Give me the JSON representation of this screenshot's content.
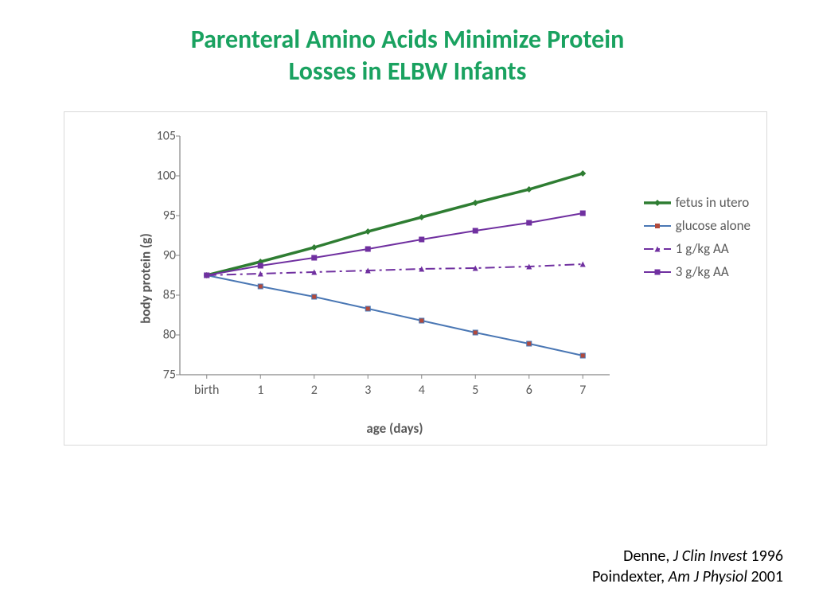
{
  "title": {
    "line1": "Parenteral Amino Acids Minimize Protein",
    "line2": "Losses in ELBW Infants",
    "color": "#1aa260",
    "fontsize": 32
  },
  "chart": {
    "type": "line",
    "background_color": "#ffffff",
    "border_color": "#d9d9d9",
    "plot_border_color": "#868686",
    "y_axis": {
      "label": "body protein (g)",
      "min": 75,
      "max": 105,
      "tick_step": 5,
      "ticks": [
        75,
        80,
        85,
        90,
        95,
        100,
        105
      ],
      "label_fontsize": 17,
      "tick_fontsize": 16,
      "label_color": "#595959"
    },
    "x_axis": {
      "label": "age (days)",
      "categories": [
        "birth",
        "1",
        "2",
        "3",
        "4",
        "5",
        "6",
        "7"
      ],
      "label_fontsize": 17,
      "tick_fontsize": 16,
      "label_color": "#595959"
    },
    "gridlines": {
      "enabled": false
    },
    "series": [
      {
        "name": "fetus in utero",
        "values": [
          87.5,
          89.2,
          91.0,
          93.0,
          94.8,
          96.6,
          98.3,
          100.3
        ],
        "color": "#2e7d32",
        "line_width": 3.5,
        "marker": "diamond",
        "marker_size": 8,
        "dash": "solid"
      },
      {
        "name": "glucose alone",
        "values": [
          87.5,
          86.1,
          84.8,
          83.3,
          81.8,
          80.3,
          78.9,
          77.4
        ],
        "color": "#4a77b4",
        "line_width": 2,
        "marker": "square",
        "marker_fill": "#b24a3c",
        "marker_size": 6,
        "dash": "solid"
      },
      {
        "name": "1 g/kg AA",
        "values": [
          87.5,
          87.7,
          87.9,
          88.1,
          88.3,
          88.4,
          88.6,
          88.9
        ],
        "color": "#7030a0",
        "line_width": 2,
        "marker": "triangle",
        "marker_size": 7,
        "dash": "dashdot"
      },
      {
        "name": "3 g/kg AA",
        "values": [
          87.5,
          88.7,
          89.7,
          90.8,
          92.0,
          93.1,
          94.1,
          95.3
        ],
        "color": "#7030a0",
        "line_width": 2,
        "marker": "square",
        "marker_size": 7,
        "dash": "solid"
      }
    ],
    "legend": {
      "position": "right",
      "fontsize": 17,
      "text_color": "#595959"
    }
  },
  "citations": [
    {
      "author": "Denne,",
      "journal": "J Clin Invest",
      "year": "1996"
    },
    {
      "author": "Poindexter,",
      "journal": "Am J Physiol",
      "year": "2001"
    }
  ]
}
